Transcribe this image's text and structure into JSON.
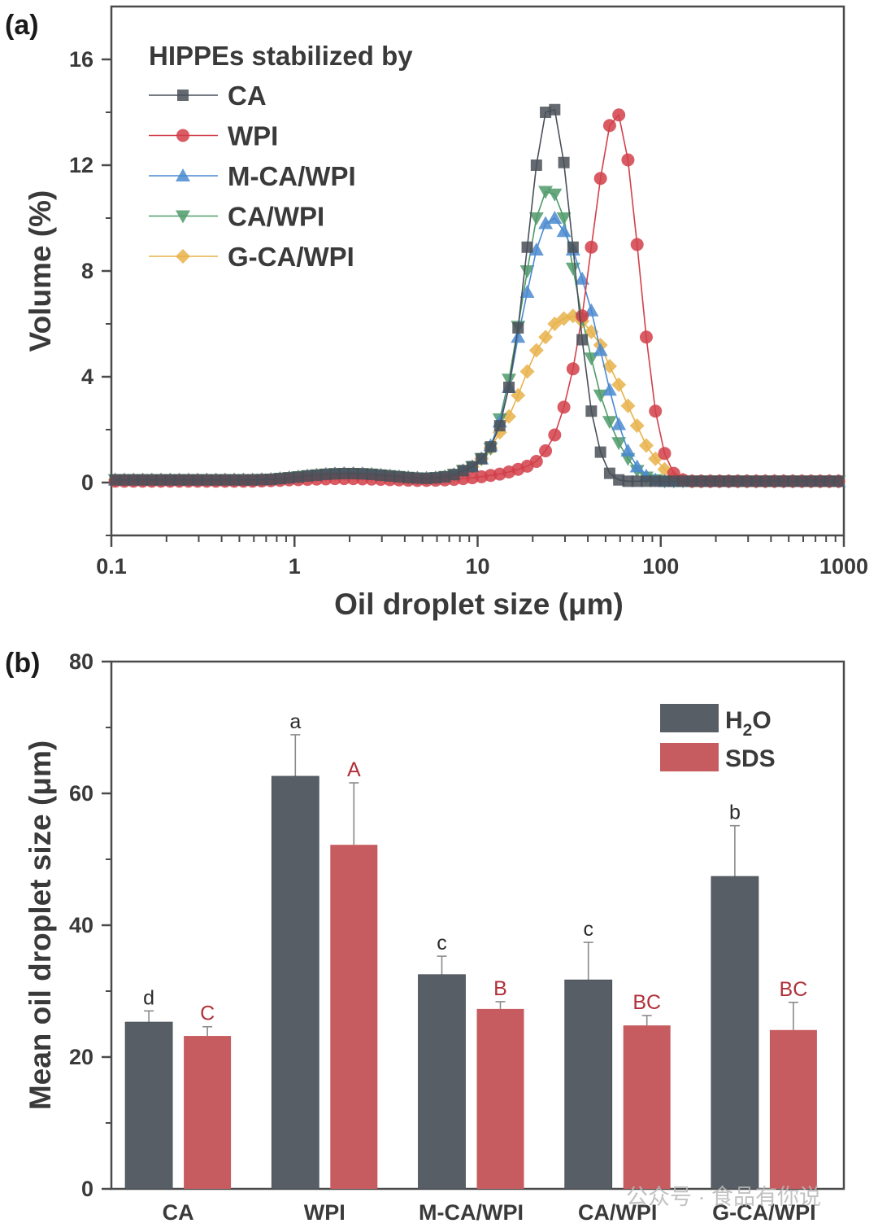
{
  "watermark": "公众号 · 食品有你说",
  "chart_data": [
    {
      "panel": "(a)",
      "type": "line",
      "title": "",
      "xlabel": "Oil droplet size (μm)",
      "ylabel": "Volume (%)",
      "xscale": "log",
      "xlim": [
        0.1,
        1000
      ],
      "ylim": [
        -2,
        18
      ],
      "xticks": [
        "0.1",
        "1",
        "10",
        "100",
        "1000"
      ],
      "yticks": [
        "0",
        "4",
        "8",
        "12",
        "16"
      ],
      "ytick_values": [
        0,
        4,
        8,
        12,
        16
      ],
      "xtick_values": [
        0.1,
        1,
        10,
        100,
        1000
      ],
      "grid": false,
      "legend_title": "HIPPEs stabilized by",
      "legend_position": "top-left",
      "x_log10_start": -0.979,
      "x_log10_step": 0.05,
      "series": [
        {
          "name": "CA",
          "marker": "square",
          "color": "#4a5058",
          "values": [
            0.1,
            0.1,
            0.1,
            0.1,
            0.1,
            0.1,
            0.1,
            0.1,
            0.1,
            0.1,
            0.1,
            0.1,
            0.1,
            0.1,
            0.1,
            0.1,
            0.11,
            0.12,
            0.15,
            0.18,
            0.21,
            0.25,
            0.28,
            0.31,
            0.33,
            0.34,
            0.34,
            0.33,
            0.31,
            0.28,
            0.25,
            0.22,
            0.19,
            0.17,
            0.16,
            0.18,
            0.22,
            0.3,
            0.45,
            0.6,
            0.9,
            1.35,
            2.15,
            3.6,
            5.85,
            8.9,
            12.0,
            14.0,
            14.1,
            12.1,
            8.9,
            5.4,
            2.7,
            1.15,
            0.35,
            0.1,
            0.05,
            0.05,
            0.05,
            0.05,
            0.05,
            0.05,
            0.05,
            0.05,
            0.05,
            0.05,
            0.05,
            0.05,
            0.05,
            0.05,
            0.05,
            0.05,
            0.05,
            0.05,
            0.05,
            0.05,
            0.05,
            0.05,
            0.05,
            0.05
          ]
        },
        {
          "name": "WPI",
          "marker": "circle",
          "color": "#d2404a",
          "values": [
            0.05,
            0.05,
            0.05,
            0.05,
            0.05,
            0.05,
            0.05,
            0.05,
            0.05,
            0.05,
            0.05,
            0.05,
            0.05,
            0.05,
            0.05,
            0.05,
            0.06,
            0.07,
            0.08,
            0.1,
            0.11,
            0.12,
            0.13,
            0.14,
            0.15,
            0.15,
            0.15,
            0.14,
            0.13,
            0.12,
            0.11,
            0.1,
            0.09,
            0.08,
            0.08,
            0.09,
            0.1,
            0.12,
            0.15,
            0.18,
            0.22,
            0.27,
            0.32,
            0.4,
            0.5,
            0.62,
            0.8,
            1.2,
            1.8,
            2.85,
            4.3,
            6.3,
            8.9,
            11.5,
            13.5,
            13.9,
            12.2,
            9.0,
            5.5,
            2.7,
            1.1,
            0.35,
            0.1,
            0.05,
            0.05,
            0.05,
            0.05,
            0.05,
            0.05,
            0.05,
            0.05,
            0.05,
            0.05,
            0.05,
            0.05,
            0.05,
            0.05,
            0.05,
            0.05,
            0.05
          ]
        },
        {
          "name": "M-CA/WPI",
          "marker": "triangle-up",
          "color": "#4a8ad0",
          "values": [
            0.1,
            0.1,
            0.1,
            0.1,
            0.1,
            0.1,
            0.1,
            0.1,
            0.1,
            0.1,
            0.1,
            0.1,
            0.1,
            0.1,
            0.1,
            0.1,
            0.11,
            0.12,
            0.15,
            0.18,
            0.21,
            0.25,
            0.28,
            0.31,
            0.33,
            0.34,
            0.34,
            0.33,
            0.31,
            0.28,
            0.25,
            0.22,
            0.19,
            0.17,
            0.16,
            0.18,
            0.22,
            0.3,
            0.45,
            0.6,
            0.9,
            1.4,
            2.3,
            3.6,
            5.5,
            7.2,
            8.8,
            9.8,
            10.0,
            9.5,
            8.8,
            7.7,
            6.5,
            5.0,
            3.5,
            2.2,
            1.2,
            0.6,
            0.25,
            0.1,
            0.05,
            0.05,
            0.05,
            0.05,
            0.05,
            0.05,
            0.05,
            0.05,
            0.05,
            0.05,
            0.05,
            0.05,
            0.05,
            0.05,
            0.05,
            0.05,
            0.05,
            0.05,
            0.05,
            0.05
          ]
        },
        {
          "name": "CA/WPI",
          "marker": "triangle-down",
          "color": "#4f9a6a",
          "values": [
            0.1,
            0.1,
            0.1,
            0.1,
            0.1,
            0.1,
            0.1,
            0.1,
            0.1,
            0.1,
            0.1,
            0.1,
            0.1,
            0.1,
            0.1,
            0.1,
            0.11,
            0.12,
            0.15,
            0.18,
            0.21,
            0.25,
            0.28,
            0.31,
            0.33,
            0.34,
            0.34,
            0.33,
            0.31,
            0.28,
            0.25,
            0.22,
            0.19,
            0.17,
            0.16,
            0.18,
            0.22,
            0.3,
            0.45,
            0.6,
            0.9,
            1.3,
            2.4,
            3.9,
            5.9,
            8.0,
            10.0,
            11.0,
            10.9,
            10.0,
            8.1,
            6.2,
            4.7,
            3.3,
            2.3,
            1.5,
            0.9,
            0.45,
            0.2,
            0.1,
            0.05,
            0.05,
            0.05,
            0.05,
            0.05,
            0.05,
            0.05,
            0.05,
            0.05,
            0.05,
            0.05,
            0.05,
            0.05,
            0.05,
            0.05,
            0.05,
            0.05,
            0.05,
            0.05,
            0.05
          ]
        },
        {
          "name": "G-CA/WPI",
          "marker": "diamond",
          "color": "#e8b24a",
          "values": [
            0.1,
            0.1,
            0.1,
            0.1,
            0.1,
            0.1,
            0.1,
            0.1,
            0.1,
            0.1,
            0.1,
            0.1,
            0.1,
            0.1,
            0.1,
            0.1,
            0.11,
            0.12,
            0.15,
            0.18,
            0.21,
            0.25,
            0.28,
            0.31,
            0.33,
            0.34,
            0.34,
            0.33,
            0.31,
            0.28,
            0.25,
            0.22,
            0.19,
            0.17,
            0.16,
            0.18,
            0.22,
            0.3,
            0.45,
            0.6,
            0.9,
            1.3,
            1.9,
            2.5,
            3.3,
            4.2,
            5.0,
            5.5,
            6.0,
            6.2,
            6.3,
            6.1,
            5.7,
            5.2,
            4.4,
            3.7,
            2.9,
            2.15,
            1.4,
            0.9,
            0.5,
            0.2,
            0.1,
            0.05,
            0.05,
            0.05,
            0.05,
            0.05,
            0.05,
            0.05,
            0.05,
            0.05,
            0.05,
            0.05,
            0.05,
            0.05,
            0.05,
            0.05,
            0.05,
            0.05
          ]
        }
      ]
    },
    {
      "panel": "(b)",
      "type": "bar",
      "title": "",
      "xlabel": "",
      "ylabel": "Mean oil droplet size (μm)",
      "ylim": [
        0,
        80
      ],
      "yticks": [
        "0",
        "20",
        "40",
        "60",
        "80"
      ],
      "ytick_values": [
        0,
        20,
        40,
        60,
        80
      ],
      "grid": false,
      "legend_position": "top-right",
      "categories": [
        "CA",
        "WPI",
        "M-CA/WPI",
        "CA/WPI",
        "G-CA/WPI"
      ],
      "series": [
        {
          "name": "H2O",
          "name_main": "H",
          "name_sub": "2",
          "name_tail": "O",
          "color": "#575e66",
          "values": [
            25.3,
            62.6,
            32.5,
            31.7,
            47.4
          ],
          "errors": [
            1.7,
            6.3,
            2.8,
            5.7,
            7.7
          ],
          "significance": [
            "d",
            "a",
            "c",
            "c",
            "b"
          ],
          "significance_color": "#2a2a2a"
        },
        {
          "name": "SDS",
          "color": "#c65c60",
          "values": [
            23.2,
            52.2,
            27.3,
            24.8,
            24.1
          ],
          "errors": [
            1.4,
            9.4,
            1.1,
            1.5,
            4.2
          ],
          "significance": [
            "C",
            "A",
            "B",
            "BC",
            "BC"
          ],
          "significance_color": "#b03039"
        }
      ]
    }
  ]
}
